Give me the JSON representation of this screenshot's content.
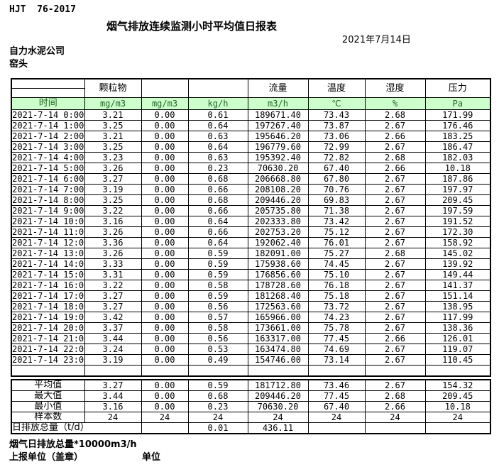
{
  "page": {
    "standard_code": "HJT  76-2017",
    "title": "烟气排放连续监测小时平均值日报表",
    "date": "2021年7月14日",
    "company": "自力水泥公司",
    "station": "窑头"
  },
  "colors": {
    "header_green_bg": "#ccffcc",
    "header_green_text": "#1f641f",
    "border": "#000000"
  },
  "table": {
    "group_headers": {
      "particulate": "颗粒物",
      "flow": "流量",
      "temperature": "温度",
      "humidity": "湿度",
      "pressure": "压力"
    },
    "unit_row": {
      "time_label": "时间",
      "units": [
        "mg/m3",
        "mg/m3",
        "kg/h",
        "m3/h",
        "℃",
        "%",
        "Pa"
      ]
    },
    "rows": [
      {
        "time": "2021-7-14 0:00",
        "values": [
          "3.21",
          "0.00",
          "0.61",
          "189671.40",
          "73.43",
          "2.68",
          "171.99"
        ]
      },
      {
        "time": "2021-7-14 1:00",
        "values": [
          "3.25",
          "0.00",
          "0.64",
          "197267.40",
          "73.87",
          "2.67",
          "176.46"
        ]
      },
      {
        "time": "2021-7-14 2:00",
        "values": [
          "3.21",
          "0.00",
          "0.63",
          "195646.20",
          "73.06",
          "2.66",
          "183.25"
        ]
      },
      {
        "time": "2021-7-14 3:00",
        "values": [
          "3.25",
          "0.00",
          "0.64",
          "196779.60",
          "72.99",
          "2.67",
          "186.47"
        ]
      },
      {
        "time": "2021-7-14 4:00",
        "values": [
          "3.23",
          "0.00",
          "0.63",
          "195392.40",
          "72.82",
          "2.68",
          "182.03"
        ]
      },
      {
        "time": "2021-7-14 5:00",
        "values": [
          "3.26",
          "0.00",
          "0.23",
          "70630.20",
          "67.40",
          "2.66",
          "10.18"
        ]
      },
      {
        "time": "2021-7-14 6:00",
        "values": [
          "3.27",
          "0.00",
          "0.68",
          "206668.80",
          "67.80",
          "2.67",
          "187.86"
        ]
      },
      {
        "time": "2021-7-14 7:00",
        "values": [
          "3.19",
          "0.00",
          "0.66",
          "208108.20",
          "70.76",
          "2.67",
          "197.97"
        ]
      },
      {
        "time": "2021-7-14 8:00",
        "values": [
          "3.25",
          "0.00",
          "0.68",
          "209446.20",
          "69.83",
          "2.67",
          "209.45"
        ]
      },
      {
        "time": "2021-7-14 9:00",
        "values": [
          "3.22",
          "0.00",
          "0.66",
          "205735.80",
          "71.38",
          "2.67",
          "197.59"
        ]
      },
      {
        "time": "2021-7-14 10:00",
        "values": [
          "3.16",
          "0.00",
          "0.64",
          "202333.80",
          "73.42",
          "2.67",
          "191.52"
        ]
      },
      {
        "time": "2021-7-14 11:00",
        "values": [
          "3.26",
          "0.00",
          "0.66",
          "202753.20",
          "75.12",
          "2.67",
          "172.30"
        ]
      },
      {
        "time": "2021-7-14 12:00",
        "values": [
          "3.36",
          "0.00",
          "0.64",
          "192062.40",
          "76.01",
          "2.67",
          "158.92"
        ]
      },
      {
        "time": "2021-7-14 13:00",
        "values": [
          "3.26",
          "0.00",
          "0.59",
          "182091.00",
          "75.27",
          "2.68",
          "145.02"
        ]
      },
      {
        "time": "2021-7-14 14:00",
        "values": [
          "3.33",
          "0.00",
          "0.59",
          "175938.60",
          "74.45",
          "2.67",
          "139.92"
        ]
      },
      {
        "time": "2021-7-14 15:00",
        "values": [
          "3.31",
          "0.00",
          "0.59",
          "176856.60",
          "75.10",
          "2.67",
          "149.44"
        ]
      },
      {
        "time": "2021-7-14 16:00",
        "values": [
          "3.22",
          "0.00",
          "0.58",
          "178728.60",
          "76.18",
          "2.67",
          "141.37"
        ]
      },
      {
        "time": "2021-7-14 17:00",
        "values": [
          "3.27",
          "0.00",
          "0.59",
          "181268.40",
          "75.18",
          "2.67",
          "151.14"
        ]
      },
      {
        "time": "2021-7-14 18:00",
        "values": [
          "3.27",
          "0.00",
          "0.56",
          "172563.60",
          "73.72",
          "2.67",
          "138.95"
        ]
      },
      {
        "time": "2021-7-14 19:00",
        "values": [
          "3.42",
          "0.00",
          "0.57",
          "165966.00",
          "74.23",
          "2.67",
          "117.99"
        ]
      },
      {
        "time": "2021-7-14 20:00",
        "values": [
          "3.37",
          "0.00",
          "0.58",
          "173661.00",
          "75.78",
          "2.67",
          "138.36"
        ]
      },
      {
        "time": "2021-7-14 21:00",
        "values": [
          "3.44",
          "0.00",
          "0.56",
          "163317.00",
          "77.45",
          "2.66",
          "126.01"
        ]
      },
      {
        "time": "2021-7-14 22:00",
        "values": [
          "3.24",
          "0.00",
          "0.53",
          "163474.80",
          "74.69",
          "2.67",
          "119.07"
        ]
      },
      {
        "time": "2021-7-14 23:00",
        "values": [
          "3.19",
          "0.00",
          "0.49",
          "154746.00",
          "73.14",
          "2.67",
          "110.45"
        ]
      }
    ],
    "summary_rows": [
      {
        "label": "平均值",
        "values": [
          "3.27",
          "0.00",
          "0.59",
          "181712.80",
          "73.46",
          "2.67",
          "154.32"
        ]
      },
      {
        "label": "最大值",
        "values": [
          "3.44",
          "0.00",
          "0.68",
          "209446.20",
          "77.45",
          "2.68",
          "209.45"
        ]
      },
      {
        "label": "最小值",
        "values": [
          "3.16",
          "0.00",
          "0.23",
          "70630.20",
          "67.40",
          "2.66",
          "10.18"
        ]
      },
      {
        "label": "样本数",
        "values": [
          "24",
          "24",
          "24",
          "24",
          "24",
          "24",
          "24"
        ]
      }
    ],
    "total_row": {
      "label": "日排放总量（t/d）",
      "values": [
        "",
        "0.01",
        "436.11",
        "",
        "",
        ""
      ]
    }
  },
  "footer": {
    "note": "烟气日排放总量*10000m3/h",
    "report_unit_label": "上报单位（盖章）",
    "unit_label": "单位"
  }
}
